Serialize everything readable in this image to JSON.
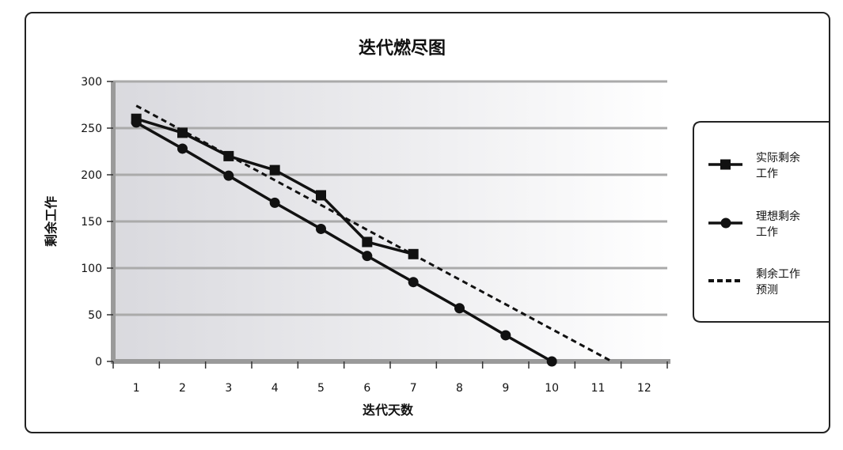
{
  "chart_data": {
    "type": "line",
    "title": "迭代燃尽图",
    "xlabel": "迭代天数",
    "ylabel": "剩余工作",
    "x": [
      1,
      2,
      3,
      4,
      5,
      6,
      7,
      8,
      9,
      10,
      11,
      12
    ],
    "x_ticks": [
      "1",
      "2",
      "3",
      "4",
      "5",
      "6",
      "7",
      "8",
      "9",
      "10",
      "11",
      "12"
    ],
    "xlim": [
      0.5,
      12.5
    ],
    "ylim": [
      0,
      300
    ],
    "y_ticks": [
      "0",
      "50",
      "100",
      "150",
      "200",
      "250",
      "300"
    ],
    "grid": true,
    "legend_position": "right",
    "series": [
      {
        "name_lines": [
          "实际剩余",
          "工作"
        ],
        "marker": "square",
        "line_style": "solid",
        "x": [
          1,
          2,
          3,
          4,
          5,
          6,
          7
        ],
        "y": [
          260,
          245,
          220,
          205,
          178,
          128,
          115
        ]
      },
      {
        "name_lines": [
          "理想剩余",
          "工作"
        ],
        "marker": "circle",
        "line_style": "solid",
        "x": [
          1,
          2,
          3,
          4,
          5,
          6,
          7,
          8,
          9,
          10
        ],
        "y": [
          256,
          228,
          199,
          170,
          142,
          113,
          85,
          57,
          28,
          0
        ]
      },
      {
        "name_lines": [
          "剩余工作",
          "预测"
        ],
        "marker": "none",
        "line_style": "dashed",
        "x": [
          1,
          11.3
        ],
        "y": [
          274,
          0
        ]
      }
    ],
    "colors": {
      "line": "#111111",
      "grid": "#aaaaaa",
      "axis": "#9a9a9a",
      "plot_bg_left": "#d9d9de",
      "plot_bg_right": "#ffffff"
    }
  }
}
